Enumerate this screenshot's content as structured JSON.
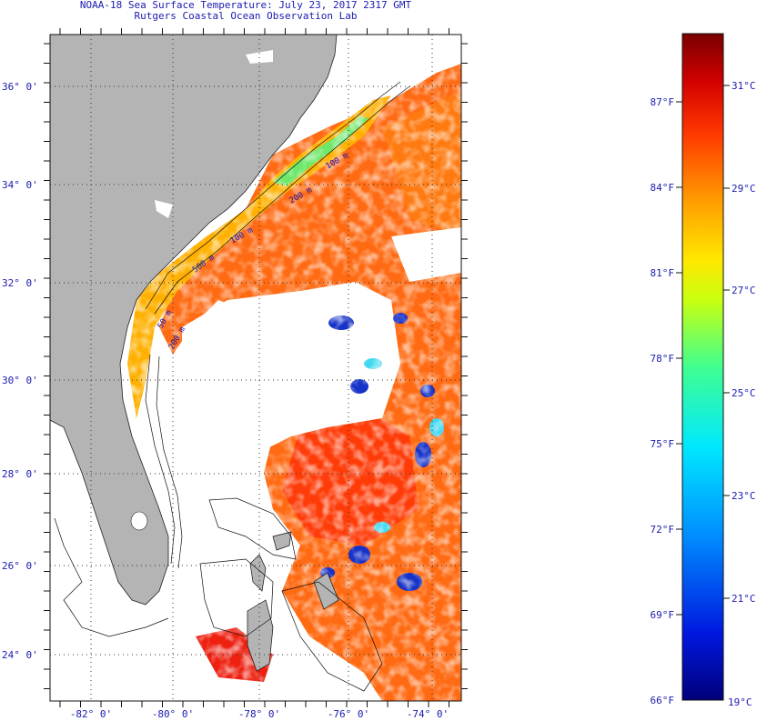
{
  "header": {
    "title_line1": "NOAA-18 Sea Surface Temperature:  July 23, 2017 2317 GMT",
    "title_line2": "Rutgers Coastal Ocean Observation Lab"
  },
  "map": {
    "lat_labels": [
      "36° 0'",
      "34° 0'",
      "32° 0'",
      "30° 0'",
      "28° 0'",
      "26° 0'",
      "24° 0'"
    ],
    "lon_labels": [
      "-82° 0'",
      "-80° 0'",
      "-78° 0'",
      "-76° 0'",
      "-74° 0'"
    ],
    "isobath_labels": [
      "100 m",
      "200 m",
      "100 m",
      "500 m",
      "50 m",
      "200 m"
    ],
    "colors": {
      "land": "#b4b4b4",
      "cloud": "#ffffff",
      "warm": "#ff6a10",
      "cool": "#1030d0"
    }
  },
  "colorbar": {
    "fahrenheit_labels": [
      "87°F",
      "84°F",
      "81°F",
      "78°F",
      "75°F",
      "72°F",
      "69°F",
      "66°F"
    ],
    "celsius_labels": [
      "31°C",
      "29°C",
      "27°C",
      "25°C",
      "23°C",
      "21°C",
      "19°C"
    ],
    "range_c": [
      19,
      32
    ],
    "gradient": [
      "#00007a",
      "#0018e0",
      "#0090ff",
      "#00e8ff",
      "#40ff90",
      "#c8ff10",
      "#ffe800",
      "#ff9c00",
      "#ff3800",
      "#d00000",
      "#7a0000"
    ]
  }
}
